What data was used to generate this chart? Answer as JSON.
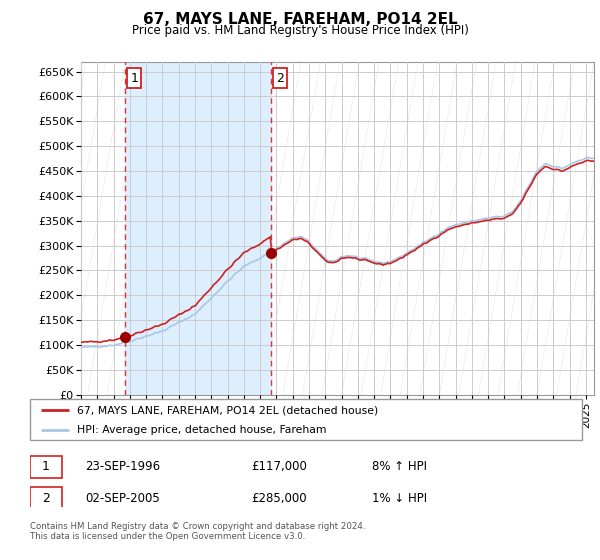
{
  "title": "67, MAYS LANE, FAREHAM, PO14 2EL",
  "subtitle": "Price paid vs. HM Land Registry's House Price Index (HPI)",
  "legend_line1": "67, MAYS LANE, FAREHAM, PO14 2EL (detached house)",
  "legend_line2": "HPI: Average price, detached house, Fareham",
  "sale1_date": "23-SEP-1996",
  "sale1_price": "£117,000",
  "sale1_hpi": "8% ↑ HPI",
  "sale1_x": 1996.73,
  "sale1_y": 117000,
  "sale2_date": "02-SEP-2005",
  "sale2_price": "£285,000",
  "sale2_hpi": "1% ↓ HPI",
  "sale2_x": 2005.67,
  "sale2_y": 285000,
  "footer": "Contains HM Land Registry data © Crown copyright and database right 2024.\nThis data is licensed under the Open Government Licence v3.0.",
  "hpi_color": "#a8c8e8",
  "price_color": "#cc2222",
  "marker_color": "#990000",
  "grid_color": "#cccccc",
  "vline_color": "#dd3333",
  "shade_color": "#ddeeff",
  "background_color": "#ffffff",
  "hatch_color": "#d0d0d0",
  "ylim": [
    0,
    670000
  ],
  "ytick_step": 50000,
  "xlim_start": 1994.0,
  "xlim_end": 2025.5
}
